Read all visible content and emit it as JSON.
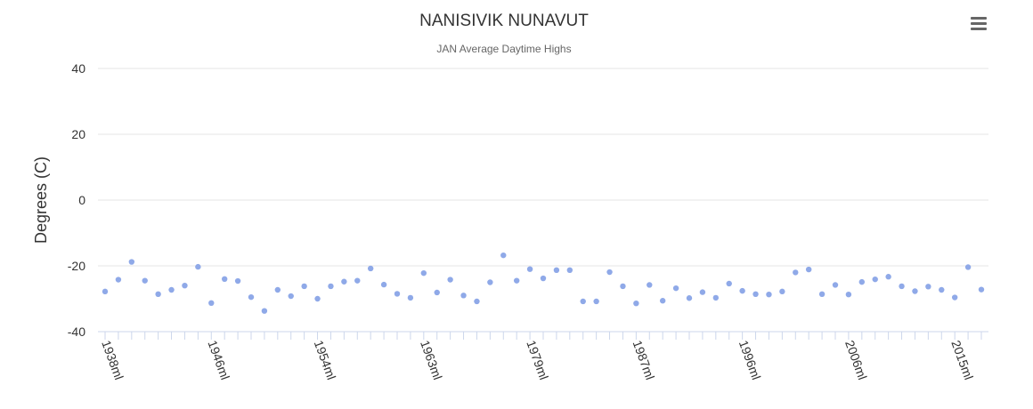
{
  "chart_data": {
    "type": "scatter",
    "title": "NANISIVIK NUNAVUT",
    "subtitle": "JAN Average Daytime Highs",
    "ylabel": "Degrees (C)",
    "xlabel": "",
    "ylim": [
      -40,
      40
    ],
    "yticks": [
      40,
      20,
      0,
      -20,
      -40
    ],
    "xtick_labels": [
      "1938ml",
      "1946ml",
      "1954ml",
      "1963ml",
      "1979ml",
      "1987ml",
      "1996ml",
      "2006ml",
      "2015ml"
    ],
    "xtick_label_positions": [
      0,
      8,
      16,
      24,
      32,
      40,
      48,
      56,
      64
    ],
    "grid": true,
    "legend": "none",
    "point_color": "#8fa9e8",
    "series": [
      {
        "values": [
          -27.8,
          -24.2,
          -18.8,
          -24.5,
          -28.6,
          -27.3,
          -26.0,
          -20.3,
          -31.3,
          -24.0,
          -24.6,
          -29.5,
          -33.7,
          -27.3,
          -29.2,
          -26.2,
          -30.0,
          -26.2,
          -24.8,
          -24.5,
          -20.8,
          -25.7,
          -28.5,
          -29.7,
          -22.2,
          -28.1,
          -24.2,
          -29.0,
          -30.8,
          -25.0,
          -16.8,
          -24.5,
          -21.0,
          -23.8,
          -21.3,
          -21.3,
          -30.8,
          -30.8,
          -21.9,
          -26.2,
          -31.4,
          -25.8,
          -30.6,
          -26.8,
          -29.8,
          -28.0,
          -29.7,
          -25.4,
          -27.6,
          -28.6,
          -28.7,
          -27.8,
          -22.0,
          -21.1,
          -28.6,
          -25.8,
          -28.7,
          -24.9,
          -24.1,
          -23.3,
          -26.2,
          -27.7,
          -26.3,
          -27.3,
          -29.6,
          -20.4,
          -27.2
        ]
      }
    ]
  },
  "ui": {
    "menu_icon": "hamburger-menu-icon"
  }
}
